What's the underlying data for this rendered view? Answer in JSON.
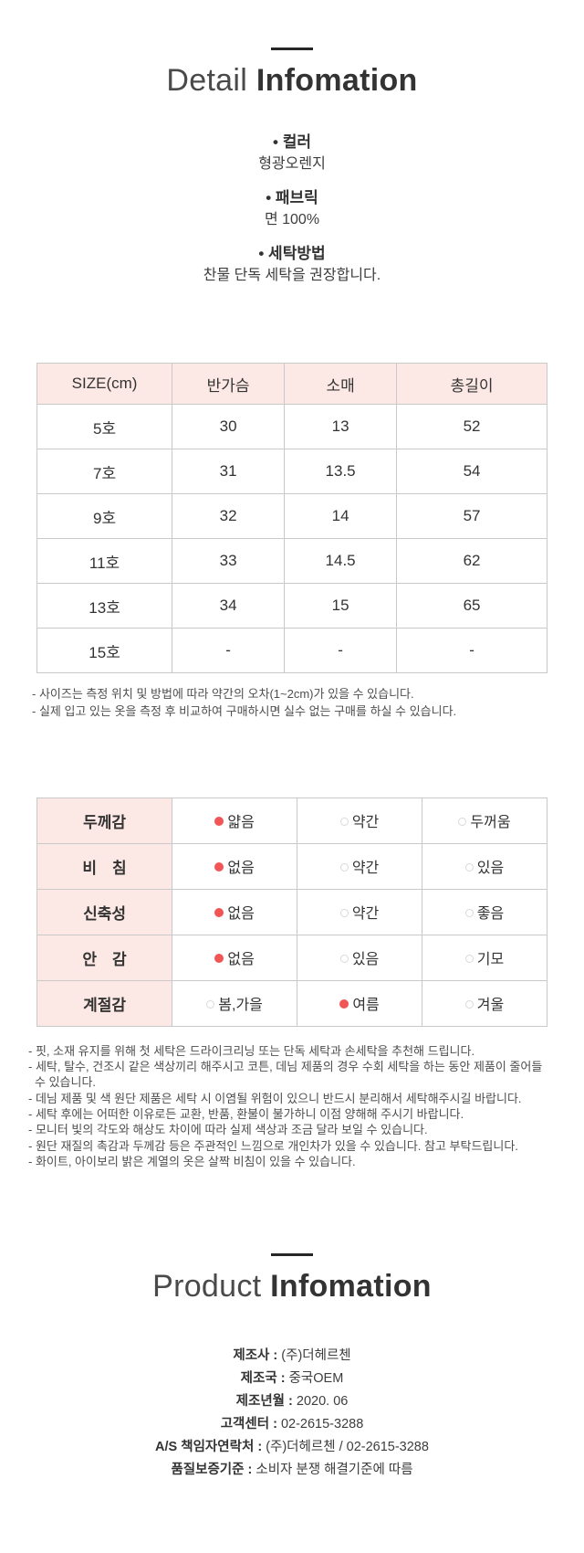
{
  "detail_section": {
    "title_light": "Detail",
    "title_bold": "Infomation",
    "specs": [
      {
        "label": "• 컬러",
        "value": "형광오렌지"
      },
      {
        "label": "• 패브릭",
        "value": "면 100%"
      },
      {
        "label": "• 세탁방법",
        "value": "찬물 단독 세탁을 권장합니다."
      }
    ]
  },
  "size_table": {
    "headers": [
      "SIZE(cm)",
      "반가슴",
      "소매",
      "총길이"
    ],
    "rows": [
      [
        "5호",
        "30",
        "13",
        "52"
      ],
      [
        "7호",
        "31",
        "13.5",
        "54"
      ],
      [
        "9호",
        "32",
        "14",
        "57"
      ],
      [
        "11호",
        "33",
        "14.5",
        "62"
      ],
      [
        "13호",
        "34",
        "15",
        "65"
      ],
      [
        "15호",
        "-",
        "-",
        "-"
      ]
    ],
    "notes": [
      "- 사이즈는 측정 위치 및 방법에 따라 약간의 오차(1~2cm)가 있을 수 있습니다.",
      "- 실제 입고 있는 옷을 측정 후 비교하여 구매하시면 실수 없는 구매를 하실 수 있습니다."
    ]
  },
  "fabric_table": {
    "rows": [
      {
        "label": "두께감",
        "options": [
          {
            "label": "얇음",
            "selected": true
          },
          {
            "label": "약간",
            "selected": false
          },
          {
            "label": "두꺼움",
            "selected": false
          }
        ]
      },
      {
        "label": "비　침",
        "options": [
          {
            "label": "없음",
            "selected": true
          },
          {
            "label": "약간",
            "selected": false
          },
          {
            "label": "있음",
            "selected": false
          }
        ]
      },
      {
        "label": "신축성",
        "options": [
          {
            "label": "없음",
            "selected": true
          },
          {
            "label": "약간",
            "selected": false
          },
          {
            "label": "좋음",
            "selected": false
          }
        ]
      },
      {
        "label": "안　감",
        "options": [
          {
            "label": "없음",
            "selected": true
          },
          {
            "label": "있음",
            "selected": false
          },
          {
            "label": "기모",
            "selected": false
          }
        ]
      },
      {
        "label": "계절감",
        "options": [
          {
            "label": "봄,가을",
            "selected": false
          },
          {
            "label": "여름",
            "selected": true
          },
          {
            "label": "겨울",
            "selected": false
          }
        ]
      }
    ]
  },
  "care_notes": [
    "- 핏, 소재 유지를 위해 첫 세탁은 드라이크리닝 또는 단독 세탁과 손세탁을 추천해 드립니다.",
    "- 세탁, 탈수, 건조시 같은 색상끼리 해주시고 코튼, 데님 제품의 경우 수회 세탁을 하는 동안 제품이 줄어들 수 있습니다.",
    "- 데님 제품 및 색 원단 제품은 세탁 시 이염될 위험이 있으니 반드시 분리해서 세탁해주시길 바랍니다.",
    "- 세탁 후에는 어떠한 이유로든 교환, 반품, 환불이 불가하니 이점 양해해 주시기 바랍니다.",
    "- 모니터 빛의 각도와 해상도 차이에 따라 실제 색상과 조금 달라 보일 수 있습니다.",
    "- 원단 재질의 촉감과 두께감 등은 주관적인 느낌으로 개인차가 있을 수 있습니다. 참고 부탁드립니다.",
    "- 화이트, 아이보리 밝은 계열의 옷은 살짝 비침이 있을 수 있습니다."
  ],
  "product_section": {
    "title_light": "Product",
    "title_bold": "Infomation",
    "separator": " : ",
    "info": [
      {
        "label": "제조사",
        "value": "(주)더헤르첸"
      },
      {
        "label": "제조국",
        "value": "중국OEM"
      },
      {
        "label": "제조년월",
        "value": "2020. 06"
      },
      {
        "label": "고객센터",
        "value": "02-2615-3288"
      },
      {
        "label": "A/S 책임자연락처",
        "value": "(주)더헤르첸 / 02-2615-3288"
      },
      {
        "label": "품질보증기준",
        "value": "소비자 분쟁 해결기준에 따름"
      }
    ]
  },
  "colors": {
    "header_pink": "#fce8e5",
    "selected_dot_red": "#f15555",
    "title_dark": "#333333",
    "border_gray": "#c9c9c9"
  }
}
